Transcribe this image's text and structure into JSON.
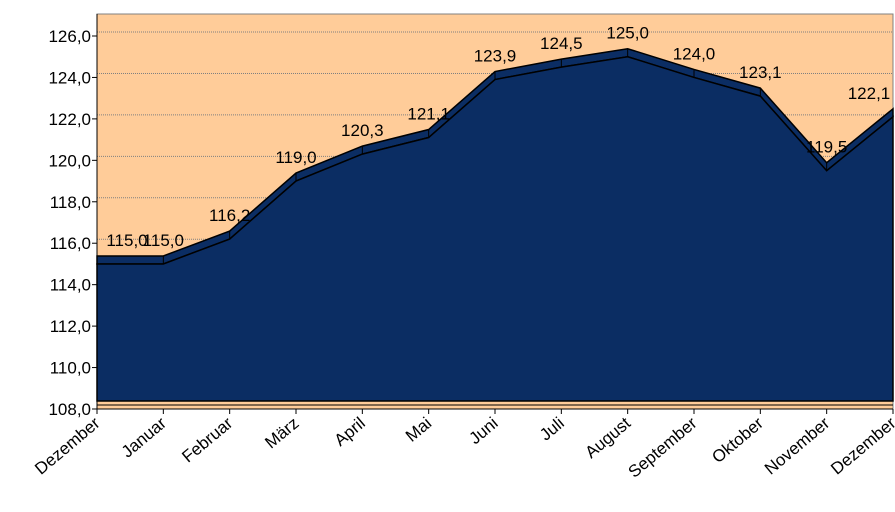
{
  "chart_data": {
    "type": "area",
    "categories": [
      "Dezember",
      "Januar",
      "Februar",
      "März",
      "April",
      "Mai",
      "Juni",
      "Juli",
      "August",
      "September",
      "Oktober",
      "November",
      "Dezember"
    ],
    "values": [
      115.0,
      115.0,
      116.2,
      119.0,
      120.3,
      121.1,
      123.9,
      124.5,
      125.0,
      124.0,
      123.1,
      119.5,
      122.1
    ],
    "value_labels": [
      "115,0",
      "115,0",
      "116,2",
      "119,0",
      "120,3",
      "121,1",
      "123,9",
      "124,5",
      "125,0",
      "124,0",
      "123,1",
      "119,5",
      "122,1"
    ],
    "color": "#0b2d63",
    "background": "#ffcc99",
    "ylim": [
      108,
      126
    ],
    "yticks": [
      {
        "value": 108,
        "label": "108,0"
      },
      {
        "value": 110,
        "label": "110,0"
      },
      {
        "value": 112,
        "label": "112,0"
      },
      {
        "value": 114,
        "label": "114,0"
      },
      {
        "value": 116,
        "label": "116,0"
      },
      {
        "value": 118,
        "label": "118,0"
      },
      {
        "value": 120,
        "label": "120,0"
      },
      {
        "value": 122,
        "label": "122,0"
      },
      {
        "value": 124,
        "label": "124,0"
      },
      {
        "value": 126,
        "label": "126,0"
      }
    ],
    "grid": true
  }
}
